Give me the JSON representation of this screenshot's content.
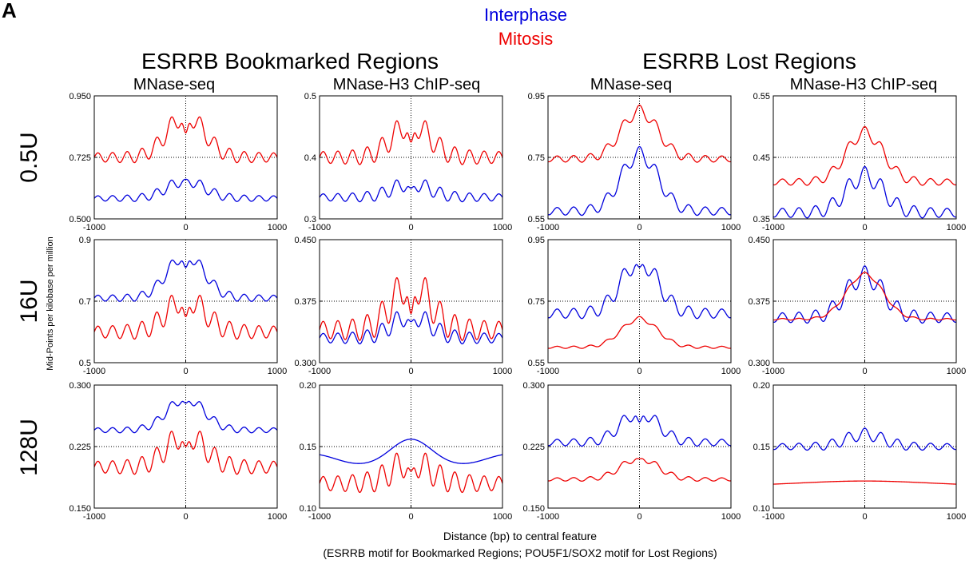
{
  "panel_label": "A",
  "legend": {
    "items": [
      {
        "label": "Interphase",
        "color": "#0000dd"
      },
      {
        "label": "Mitosis",
        "color": "#ee0000"
      }
    ]
  },
  "group_titles": [
    "ESRRB Bookmarked Regions",
    "ESRRB Lost Regions"
  ],
  "column_titles": [
    "MNase-seq",
    "MNase-H3 ChIP-seq",
    "MNase-seq",
    "MNase-H3 ChIP-seq"
  ],
  "row_titles": [
    "0.5U",
    "16U",
    "128U"
  ],
  "y_axis_label": "Mid-Points per kilobase per million",
  "x_axis_label": "Distance (bp) to central feature",
  "x_axis_note": "(ESRRB motif for Bookmarked Regions; POU5F1/SOX2 motif for Lost Regions)",
  "colors": {
    "interphase": "#0000dd",
    "mitosis": "#ee0000",
    "frame": "#000000"
  },
  "chart_data": {
    "type": "line",
    "grid_rows": 3,
    "grid_cols": 4,
    "x_range": [
      -1000,
      1000
    ],
    "x_ticks": [
      "-1000",
      "0",
      "1000"
    ],
    "reference_lines": "dotted at x = 0 and at the middle y tick",
    "series_names": [
      "Interphase",
      "Mitosis"
    ],
    "panels": [
      {
        "row": "0.5U",
        "column": "MNase-seq",
        "group": "ESRRB Bookmarked Regions",
        "ylim": [
          0.5,
          0.95
        ],
        "y_ticks": [
          "0.500",
          "0.725",
          "0.950"
        ],
        "series": [
          {
            "name": "Interphase",
            "color": "#0000dd",
            "base": 0.575,
            "peak": 0.66,
            "osc_amp": 0.02,
            "period": 160,
            "center_dip": 0.015
          },
          {
            "name": "Mitosis",
            "color": "#ee0000",
            "base": 0.725,
            "peak": 0.915,
            "osc_amp": 0.035,
            "period": 160,
            "center_dip": 0.1
          }
        ]
      },
      {
        "row": "0.5U",
        "column": "MNase-H3 ChIP-seq",
        "group": "ESRRB Bookmarked Regions",
        "ylim": [
          0.3,
          0.5
        ],
        "y_ticks": [
          "0.3",
          "0.4",
          "0.5"
        ],
        "series": [
          {
            "name": "Interphase",
            "color": "#0000dd",
            "base": 0.335,
            "peak": 0.37,
            "osc_amp": 0.012,
            "period": 160,
            "center_dip": 0.02
          },
          {
            "name": "Mitosis",
            "color": "#ee0000",
            "base": 0.4,
            "peak": 0.475,
            "osc_amp": 0.02,
            "period": 160,
            "center_dip": 0.05
          }
        ]
      },
      {
        "row": "0.5U",
        "column": "MNase-seq",
        "group": "ESRRB Lost Regions",
        "ylim": [
          0.55,
          0.95
        ],
        "y_ticks": [
          "0.55",
          "0.75",
          "0.95"
        ],
        "series": [
          {
            "name": "Interphase",
            "color": "#0000dd",
            "base": 0.575,
            "peak": 0.785,
            "osc_amp": 0.025,
            "period": 180,
            "center_dip": 0.0
          },
          {
            "name": "Mitosis",
            "color": "#ee0000",
            "base": 0.745,
            "peak": 0.92,
            "osc_amp": 0.02,
            "period": 180,
            "center_dip": 0.0
          }
        ]
      },
      {
        "row": "0.5U",
        "column": "MNase-H3 ChIP-seq",
        "group": "ESRRB Lost Regions",
        "ylim": [
          0.35,
          0.55
        ],
        "y_ticks": [
          "0.35",
          "0.45",
          "0.55"
        ],
        "series": [
          {
            "name": "Interphase",
            "color": "#0000dd",
            "base": 0.36,
            "peak": 0.435,
            "osc_amp": 0.015,
            "period": 180,
            "center_dip": 0.0
          },
          {
            "name": "Mitosis",
            "color": "#ee0000",
            "base": 0.41,
            "peak": 0.5,
            "osc_amp": 0.01,
            "period": 180,
            "center_dip": 0.0
          }
        ]
      },
      {
        "row": "16U",
        "column": "MNase-seq",
        "group": "ESRRB Bookmarked Regions",
        "ylim": [
          0.5,
          0.9
        ],
        "y_ticks": [
          "0.5",
          "0.7",
          "0.9"
        ],
        "series": [
          {
            "name": "Interphase",
            "color": "#0000dd",
            "base": 0.71,
            "peak": 0.87,
            "osc_amp": 0.02,
            "period": 160,
            "center_dip": 0.06
          },
          {
            "name": "Mitosis",
            "color": "#ee0000",
            "base": 0.6,
            "peak": 0.75,
            "osc_amp": 0.04,
            "period": 160,
            "center_dip": 0.1
          }
        ]
      },
      {
        "row": "16U",
        "column": "MNase-H3 ChIP-seq",
        "group": "ESRRB Bookmarked Regions",
        "ylim": [
          0.3,
          0.45
        ],
        "y_ticks": [
          "0.300",
          "0.375",
          "0.450"
        ],
        "series": [
          {
            "name": "Interphase",
            "color": "#0000dd",
            "base": 0.33,
            "peak": 0.37,
            "osc_amp": 0.012,
            "period": 160,
            "center_dip": 0.02
          },
          {
            "name": "Mitosis",
            "color": "#ee0000",
            "base": 0.34,
            "peak": 0.42,
            "osc_amp": 0.022,
            "period": 160,
            "center_dip": 0.06
          }
        ]
      },
      {
        "row": "16U",
        "column": "MNase-seq",
        "group": "ESRRB Lost Regions",
        "ylim": [
          0.55,
          0.95
        ],
        "y_ticks": [
          "0.55",
          "0.75",
          "0.95"
        ],
        "series": [
          {
            "name": "Interphase",
            "color": "#0000dd",
            "base": 0.71,
            "peak": 0.91,
            "osc_amp": 0.03,
            "period": 180,
            "center_dip": 0.05
          },
          {
            "name": "Mitosis",
            "color": "#ee0000",
            "base": 0.6,
            "peak": 0.7,
            "osc_amp": 0.007,
            "period": 180,
            "center_dip": 0.0
          }
        ]
      },
      {
        "row": "16U",
        "column": "MNase-H3 ChIP-seq",
        "group": "ESRRB Lost Regions",
        "ylim": [
          0.3,
          0.45
        ],
        "y_ticks": [
          "0.300",
          "0.375",
          "0.450"
        ],
        "series": [
          {
            "name": "Interphase",
            "color": "#0000dd",
            "base": 0.355,
            "peak": 0.418,
            "osc_amp": 0.012,
            "period": 180,
            "center_dip": 0.0
          },
          {
            "name": "Mitosis",
            "color": "#ee0000",
            "base": 0.353,
            "peak": 0.41,
            "osc_amp": 0.002,
            "period": 180,
            "center_dip": 0.0
          }
        ]
      },
      {
        "row": "128U",
        "column": "MNase-seq",
        "group": "ESRRB Bookmarked Regions",
        "ylim": [
          0.15,
          0.3
        ],
        "y_ticks": [
          "0.150",
          "0.225",
          "0.300"
        ],
        "series": [
          {
            "name": "Interphase",
            "color": "#0000dd",
            "base": 0.245,
            "peak": 0.29,
            "osc_amp": 0.006,
            "period": 160,
            "center_dip": 0.012
          },
          {
            "name": "Mitosis",
            "color": "#ee0000",
            "base": 0.2,
            "peak": 0.255,
            "osc_amp": 0.015,
            "period": 160,
            "center_dip": 0.03
          }
        ]
      },
      {
        "row": "128U",
        "column": "MNase-H3 ChIP-seq",
        "group": "ESRRB Bookmarked Regions",
        "ylim": [
          0.1,
          0.2
        ],
        "y_ticks": [
          "0.10",
          "0.15",
          "0.20"
        ],
        "series": [
          {
            "name": "Interphase",
            "color": "#0000dd",
            "base": 0.14,
            "peak": 0.152,
            "osc_amp": 0.0,
            "period": 160,
            "center_dip": 0.0,
            "wave_amp": 0.004
          },
          {
            "name": "Mitosis",
            "color": "#ee0000",
            "base": 0.12,
            "peak": 0.15,
            "osc_amp": 0.012,
            "period": 160,
            "center_dip": 0.02
          }
        ]
      },
      {
        "row": "128U",
        "column": "MNase-seq",
        "group": "ESRRB Lost Regions",
        "ylim": [
          0.15,
          0.3
        ],
        "y_ticks": [
          "0.150",
          "0.225",
          "0.300"
        ],
        "series": [
          {
            "name": "Interphase",
            "color": "#0000dd",
            "base": 0.23,
            "peak": 0.275,
            "osc_amp": 0.008,
            "period": 180,
            "center_dip": 0.02
          },
          {
            "name": "Mitosis",
            "color": "#ee0000",
            "base": 0.185,
            "peak": 0.215,
            "osc_amp": 0.004,
            "period": 180,
            "center_dip": 0.005
          }
        ]
      },
      {
        "row": "128U",
        "column": "MNase-H3 ChIP-seq",
        "group": "ESRRB Lost Regions",
        "ylim": [
          0.1,
          0.2
        ],
        "y_ticks": [
          "0.10",
          "0.15",
          "0.20"
        ],
        "series": [
          {
            "name": "Interphase",
            "color": "#0000dd",
            "base": 0.15,
            "peak": 0.165,
            "osc_amp": 0.005,
            "period": 180,
            "center_dip": 0.0
          },
          {
            "name": "Mitosis",
            "color": "#ee0000",
            "base": 0.118,
            "peak": 0.122,
            "osc_amp": 0.0,
            "period": 180,
            "center_dip": 0.0,
            "smooth": true
          }
        ]
      }
    ]
  }
}
